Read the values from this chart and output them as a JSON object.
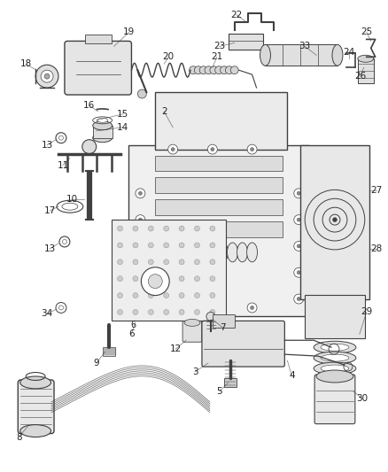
{
  "bg_color": "#ffffff",
  "line_color": "#404040",
  "text_color": "#222222",
  "fig_width": 4.38,
  "fig_height": 5.33,
  "dpi": 100
}
